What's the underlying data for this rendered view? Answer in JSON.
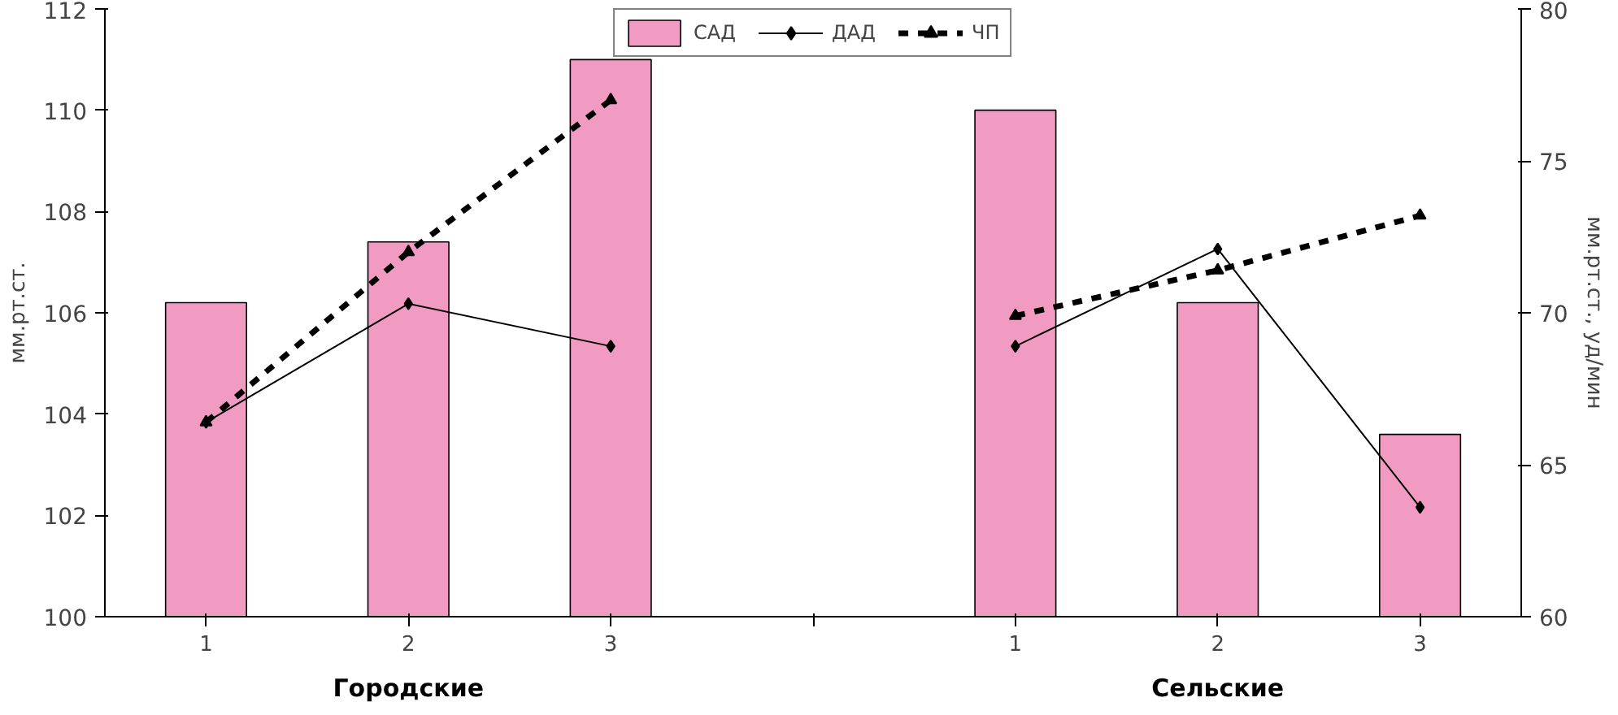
{
  "chart_data": {
    "type": "bar",
    "categories": [
      "1",
      "2",
      "3",
      null,
      "1",
      "2",
      "3"
    ],
    "ylabel": "мм.рт.ст.",
    "y2label": "мм.рт.ст., уд/мин",
    "ylim": [
      100,
      112
    ],
    "yticks": [
      100,
      102,
      104,
      106,
      108,
      110,
      112
    ],
    "y2lim": [
      60,
      80
    ],
    "y2ticks": [
      60,
      65,
      70,
      75,
      80
    ],
    "annotations": [
      "Городские",
      "Сельские"
    ],
    "legend": "top",
    "grid": false,
    "series": [
      {
        "name": "САД",
        "color": "#f19bc2",
        "values": [
          106.2,
          107.4,
          111.0,
          null,
          110.0,
          106.2,
          103.6
        ]
      },
      {
        "name": "ДАД",
        "type": "line",
        "axis": "y2",
        "color": "#000000",
        "marker": "diamond",
        "line_style": "solid",
        "values": [
          66.4,
          70.3,
          68.9,
          null,
          68.9,
          72.1,
          63.6
        ]
      },
      {
        "name": "ЧП",
        "type": "line",
        "axis": "y2",
        "color": "#000000",
        "marker": "triangle",
        "line_style": "dashed",
        "values": [
          66.4,
          72.0,
          77.0,
          null,
          69.9,
          71.4,
          73.2
        ]
      }
    ]
  }
}
